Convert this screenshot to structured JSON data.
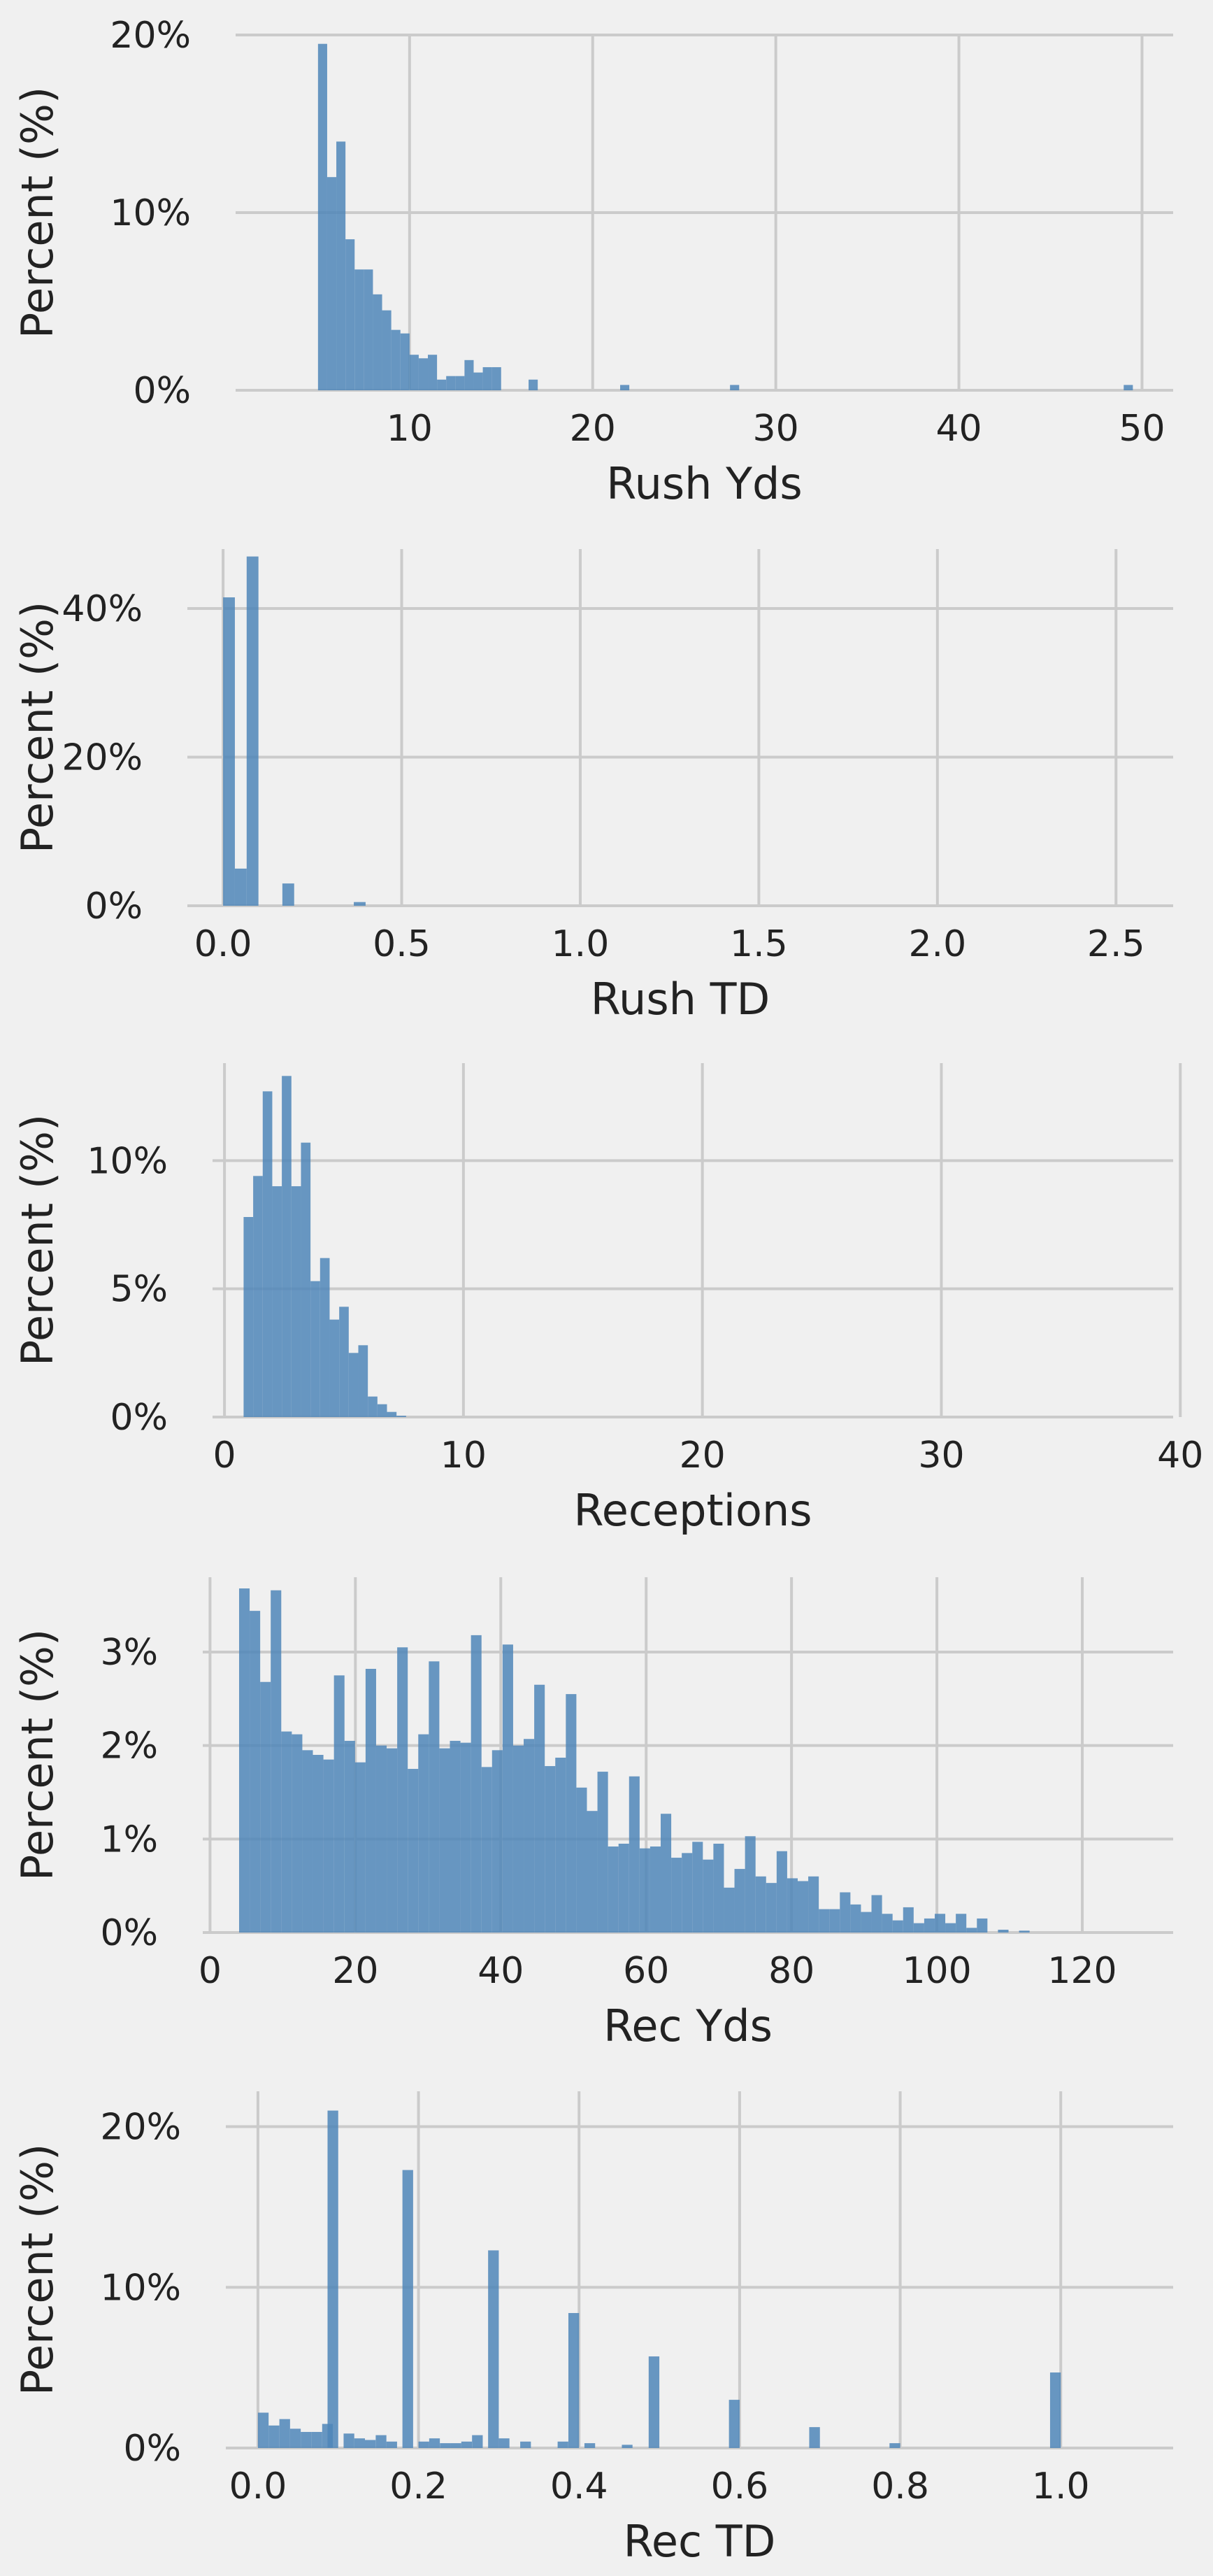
{
  "figure": {
    "background": "#f0f0f0",
    "bar_color": "#4f86b8",
    "grid_color": "#cbcbcb"
  },
  "chart_data": [
    {
      "type": "bar",
      "xlabel": "Rush Yds",
      "ylabel": "Percent (%)",
      "xlim": [
        0.5,
        51.7
      ],
      "ylim": [
        0,
        20
      ],
      "xticks": [
        10,
        20,
        30,
        40,
        50
      ],
      "yticks": [
        0,
        10,
        20
      ],
      "ytick_labels": [
        "0%",
        "10%",
        "20%"
      ],
      "xtick_labels": [
        "10",
        "20",
        "30",
        "40",
        "50"
      ],
      "grid": true,
      "bin_width": 0.5,
      "bins": [
        {
          "x": 5.0,
          "y": 19.5
        },
        {
          "x": 5.5,
          "y": 12.0
        },
        {
          "x": 6.0,
          "y": 14.0
        },
        {
          "x": 6.5,
          "y": 8.5
        },
        {
          "x": 7.0,
          "y": 6.8
        },
        {
          "x": 7.5,
          "y": 6.8
        },
        {
          "x": 8.0,
          "y": 5.4
        },
        {
          "x": 8.5,
          "y": 4.5
        },
        {
          "x": 9.0,
          "y": 3.4
        },
        {
          "x": 9.5,
          "y": 3.2
        },
        {
          "x": 10.0,
          "y": 2.0
        },
        {
          "x": 10.5,
          "y": 1.8
        },
        {
          "x": 11.0,
          "y": 2.0
        },
        {
          "x": 11.5,
          "y": 0.6
        },
        {
          "x": 12.0,
          "y": 0.8
        },
        {
          "x": 12.5,
          "y": 0.8
        },
        {
          "x": 13.0,
          "y": 1.7
        },
        {
          "x": 13.5,
          "y": 1.0
        },
        {
          "x": 14.0,
          "y": 1.3
        },
        {
          "x": 14.5,
          "y": 1.3
        },
        {
          "x": 16.5,
          "y": 0.6
        },
        {
          "x": 21.5,
          "y": 0.3
        },
        {
          "x": 27.5,
          "y": 0.3
        },
        {
          "x": 49.0,
          "y": 0.3
        }
      ]
    },
    {
      "type": "bar",
      "xlabel": "Rush TD",
      "ylabel": "Percent (%)",
      "xlim": [
        -0.1,
        2.66
      ],
      "ylim": [
        0,
        48
      ],
      "xticks": [
        0.0,
        0.5,
        1.0,
        1.5,
        2.0,
        2.5
      ],
      "xtick_labels": [
        "0.0",
        "0.5",
        "1.0",
        "1.5",
        "2.0",
        "2.5"
      ],
      "yticks": [
        0,
        20,
        40
      ],
      "ytick_labels": [
        "0%",
        "20%",
        "40%"
      ],
      "grid": true,
      "bin_width": 0.033,
      "bins": [
        {
          "x": 0.0,
          "y": 41.5
        },
        {
          "x": 0.033,
          "y": 5.0
        },
        {
          "x": 0.066,
          "y": 47.0
        },
        {
          "x": 0.166,
          "y": 3.0
        },
        {
          "x": 0.366,
          "y": 0.5
        }
      ]
    },
    {
      "type": "bar",
      "xlabel": "Receptions",
      "ylabel": "Percent (%)",
      "xlim": [
        -0.5,
        39.7
      ],
      "ylim": [
        0,
        13.8
      ],
      "xticks": [
        0,
        10,
        20,
        30,
        40
      ],
      "xtick_labels": [
        "0",
        "10",
        "20",
        "30",
        "40"
      ],
      "yticks": [
        0,
        5,
        10
      ],
      "ytick_labels": [
        "0%",
        "5%",
        "10%"
      ],
      "grid": true,
      "bin_width": 0.4,
      "bins": [
        {
          "x": 0.8,
          "y": 7.8
        },
        {
          "x": 1.2,
          "y": 9.4
        },
        {
          "x": 1.6,
          "y": 12.7
        },
        {
          "x": 2.0,
          "y": 9.0
        },
        {
          "x": 2.4,
          "y": 13.3
        },
        {
          "x": 2.8,
          "y": 9.0
        },
        {
          "x": 3.2,
          "y": 10.7
        },
        {
          "x": 3.6,
          "y": 5.3
        },
        {
          "x": 4.0,
          "y": 6.2
        },
        {
          "x": 4.4,
          "y": 3.8
        },
        {
          "x": 4.8,
          "y": 4.3
        },
        {
          "x": 5.2,
          "y": 2.5
        },
        {
          "x": 5.6,
          "y": 2.8
        },
        {
          "x": 6.0,
          "y": 0.8
        },
        {
          "x": 6.4,
          "y": 0.5
        },
        {
          "x": 6.8,
          "y": 0.2
        },
        {
          "x": 7.2,
          "y": 0.05
        }
      ]
    },
    {
      "type": "bar",
      "xlabel": "Rec Yds",
      "ylabel": "Percent (%)",
      "xlim": [
        -1.0,
        132.5
      ],
      "ylim": [
        0,
        3.8
      ],
      "xticks": [
        0,
        20,
        40,
        60,
        80,
        100,
        120
      ],
      "xtick_labels": [
        "0",
        "20",
        "40",
        "60",
        "80",
        "100",
        "120"
      ],
      "yticks": [
        0,
        1,
        2,
        3
      ],
      "ytick_labels": [
        "0%",
        "1%",
        "2%",
        "3%"
      ],
      "grid": true,
      "bin_width": 1.45,
      "bins": [
        {
          "x": 4.0,
          "y": 3.68
        },
        {
          "x": 5.45,
          "y": 3.44
        },
        {
          "x": 6.9,
          "y": 2.68
        },
        {
          "x": 8.35,
          "y": 3.66
        },
        {
          "x": 9.8,
          "y": 2.15
        },
        {
          "x": 11.25,
          "y": 2.12
        },
        {
          "x": 12.7,
          "y": 1.95
        },
        {
          "x": 14.15,
          "y": 1.9
        },
        {
          "x": 15.6,
          "y": 1.85
        },
        {
          "x": 17.05,
          "y": 2.75
        },
        {
          "x": 18.5,
          "y": 2.05
        },
        {
          "x": 19.95,
          "y": 1.82
        },
        {
          "x": 21.4,
          "y": 2.82
        },
        {
          "x": 22.85,
          "y": 2.0
        },
        {
          "x": 24.3,
          "y": 1.97
        },
        {
          "x": 25.75,
          "y": 3.05
        },
        {
          "x": 27.2,
          "y": 1.75
        },
        {
          "x": 28.65,
          "y": 2.12
        },
        {
          "x": 30.1,
          "y": 2.9
        },
        {
          "x": 31.55,
          "y": 1.97
        },
        {
          "x": 33.0,
          "y": 2.05
        },
        {
          "x": 34.45,
          "y": 2.03
        },
        {
          "x": 35.9,
          "y": 3.18
        },
        {
          "x": 37.35,
          "y": 1.77
        },
        {
          "x": 38.8,
          "y": 1.95
        },
        {
          "x": 40.25,
          "y": 3.08
        },
        {
          "x": 41.7,
          "y": 2.0
        },
        {
          "x": 43.15,
          "y": 2.07
        },
        {
          "x": 44.6,
          "y": 2.65
        },
        {
          "x": 46.05,
          "y": 1.78
        },
        {
          "x": 47.5,
          "y": 1.87
        },
        {
          "x": 48.95,
          "y": 2.55
        },
        {
          "x": 50.4,
          "y": 1.55
        },
        {
          "x": 51.85,
          "y": 1.3
        },
        {
          "x": 53.3,
          "y": 1.72
        },
        {
          "x": 54.75,
          "y": 0.92
        },
        {
          "x": 56.2,
          "y": 0.95
        },
        {
          "x": 57.65,
          "y": 1.67
        },
        {
          "x": 59.1,
          "y": 0.9
        },
        {
          "x": 60.55,
          "y": 0.92
        },
        {
          "x": 62.0,
          "y": 1.27
        },
        {
          "x": 63.45,
          "y": 0.8
        },
        {
          "x": 64.9,
          "y": 0.85
        },
        {
          "x": 66.35,
          "y": 0.97
        },
        {
          "x": 67.8,
          "y": 0.78
        },
        {
          "x": 69.25,
          "y": 0.95
        },
        {
          "x": 70.7,
          "y": 0.48
        },
        {
          "x": 72.15,
          "y": 0.68
        },
        {
          "x": 73.6,
          "y": 1.03
        },
        {
          "x": 75.05,
          "y": 0.6
        },
        {
          "x": 76.5,
          "y": 0.53
        },
        {
          "x": 77.95,
          "y": 0.87
        },
        {
          "x": 79.4,
          "y": 0.58
        },
        {
          "x": 80.85,
          "y": 0.55
        },
        {
          "x": 82.3,
          "y": 0.6
        },
        {
          "x": 83.75,
          "y": 0.25
        },
        {
          "x": 85.2,
          "y": 0.25
        },
        {
          "x": 86.65,
          "y": 0.43
        },
        {
          "x": 88.1,
          "y": 0.3
        },
        {
          "x": 89.55,
          "y": 0.22
        },
        {
          "x": 91.0,
          "y": 0.4
        },
        {
          "x": 92.45,
          "y": 0.2
        },
        {
          "x": 93.9,
          "y": 0.13
        },
        {
          "x": 95.35,
          "y": 0.27
        },
        {
          "x": 96.8,
          "y": 0.1
        },
        {
          "x": 98.25,
          "y": 0.15
        },
        {
          "x": 99.7,
          "y": 0.2
        },
        {
          "x": 101.15,
          "y": 0.1
        },
        {
          "x": 102.6,
          "y": 0.2
        },
        {
          "x": 104.05,
          "y": 0.05
        },
        {
          "x": 105.5,
          "y": 0.15
        },
        {
          "x": 108.4,
          "y": 0.03
        },
        {
          "x": 111.3,
          "y": 0.02
        }
      ]
    },
    {
      "type": "bar",
      "xlabel": "Rec TD",
      "ylabel": "Percent (%)",
      "xlim": [
        -0.04,
        1.14
      ],
      "ylim": [
        0,
        22.2
      ],
      "xticks": [
        0.0,
        0.2,
        0.4,
        0.6,
        0.8,
        1.0
      ],
      "xtick_labels": [
        "0.0",
        "0.2",
        "0.4",
        "0.6",
        "0.8",
        "1.0"
      ],
      "yticks": [
        0,
        10,
        20
      ],
      "ytick_labels": [
        "0%",
        "10%",
        "20%"
      ],
      "grid": true,
      "bin_width": 0.0133,
      "bins": [
        {
          "x": 0.0,
          "y": 2.2
        },
        {
          "x": 0.0133,
          "y": 1.4
        },
        {
          "x": 0.0267,
          "y": 1.8
        },
        {
          "x": 0.04,
          "y": 1.2
        },
        {
          "x": 0.0533,
          "y": 1.0
        },
        {
          "x": 0.0667,
          "y": 1.0
        },
        {
          "x": 0.08,
          "y": 1.5
        },
        {
          "x": 0.0867,
          "y": 21.0
        },
        {
          "x": 0.1067,
          "y": 0.9
        },
        {
          "x": 0.12,
          "y": 0.6
        },
        {
          "x": 0.1333,
          "y": 0.5
        },
        {
          "x": 0.1467,
          "y": 0.8
        },
        {
          "x": 0.16,
          "y": 0.4
        },
        {
          "x": 0.18,
          "y": 17.3
        },
        {
          "x": 0.2,
          "y": 0.4
        },
        {
          "x": 0.2133,
          "y": 0.6
        },
        {
          "x": 0.2267,
          "y": 0.3
        },
        {
          "x": 0.24,
          "y": 0.3
        },
        {
          "x": 0.2533,
          "y": 0.4
        },
        {
          "x": 0.2667,
          "y": 0.8
        },
        {
          "x": 0.2867,
          "y": 12.3
        },
        {
          "x": 0.3,
          "y": 0.6
        },
        {
          "x": 0.3267,
          "y": 0.4
        },
        {
          "x": 0.3733,
          "y": 0.4
        },
        {
          "x": 0.3867,
          "y": 8.4
        },
        {
          "x": 0.4067,
          "y": 0.3
        },
        {
          "x": 0.4533,
          "y": 0.2
        },
        {
          "x": 0.4867,
          "y": 5.7
        },
        {
          "x": 0.5867,
          "y": 3.0
        },
        {
          "x": 0.6867,
          "y": 1.3
        },
        {
          "x": 0.7867,
          "y": 0.3
        },
        {
          "x": 0.9867,
          "y": 4.7
        }
      ]
    }
  ]
}
